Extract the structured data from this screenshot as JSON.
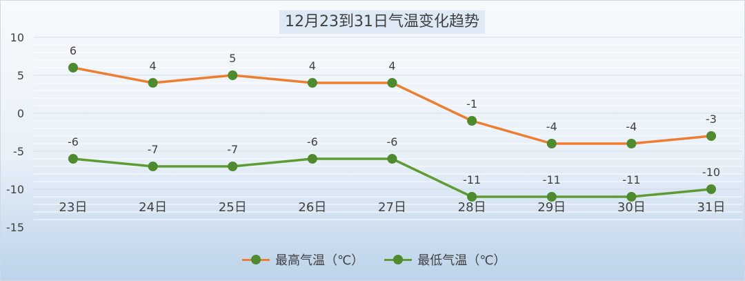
{
  "chart_data": {
    "type": "line",
    "title": "12月23到31日气温变化趋势",
    "categories": [
      "23日",
      "24日",
      "25日",
      "26日",
      "27日",
      "28日",
      "29日",
      "30日",
      "31日"
    ],
    "ylim": [
      -15,
      10
    ],
    "yticks": [
      10,
      5,
      0,
      -5,
      -10,
      -15
    ],
    "grid": true,
    "legend_position": "bottom",
    "series": [
      {
        "name": "最高气温（℃）",
        "values": [
          6,
          4,
          5,
          4,
          4,
          -1,
          -4,
          -4,
          -3
        ],
        "line_color": "#ed7d31",
        "marker_color": "#4e8a2e"
      },
      {
        "name": "最低气温（℃）",
        "values": [
          -6,
          -7,
          -7,
          -6,
          -6,
          -11,
          -11,
          -11,
          -10
        ],
        "line_color": "#5f9b33",
        "marker_color": "#4e8a2e"
      }
    ]
  }
}
